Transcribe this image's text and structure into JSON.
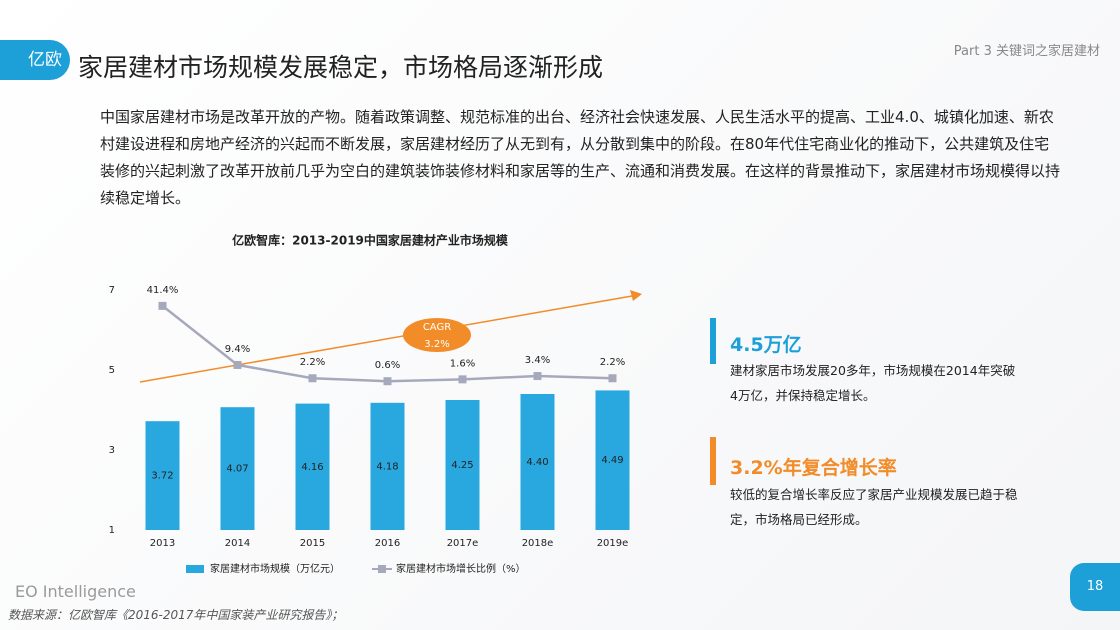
{
  "header": {
    "logo": "亿欧",
    "title": "家居建材市场规模发展稳定，市场格局逐渐形成",
    "part": "Part 3 关键词之家居建材"
  },
  "paragraph": "中国家居建材市场是改革开放的产物。随着政策调整、规范标准的出台、经济社会快速发展、人民生活水平的提高、工业4.0、城镇化加速、新农村建设进程和房地产经济的兴起而不断发展，家居建材经历了从无到有，从分散到集中的阶段。在80年代住宅商业化的推动下，公共建筑及住宅装修的兴起刺激了改革开放前几乎为空白的建筑装饰装修材料和家居等的生产、流通和消费发展。在这样的背景推动下，家居建材市场规模得以持续稳定增长。",
  "chart_data": {
    "type": "bar",
    "title": "亿欧智库：2013-2019中国家居建材产业市场规模",
    "categories": [
      "2013",
      "2014",
      "2015",
      "2016",
      "2017e",
      "2018e",
      "2019e"
    ],
    "series": [
      {
        "name": "家居建材市场规模（万亿元）",
        "type": "bar",
        "color": "#29a8e0",
        "values": [
          3.72,
          4.07,
          4.16,
          4.18,
          4.25,
          4.4,
          4.49
        ],
        "value_labels": [
          "3.72",
          "4.07",
          "4.16",
          "4.18",
          "4.25",
          "4.40",
          "4.49"
        ]
      },
      {
        "name": "家居建材市场增长比例（%）",
        "type": "line",
        "axis": "y2",
        "color": "#a6a9bc",
        "values": [
          41.4,
          9.4,
          2.2,
          0.6,
          1.6,
          3.4,
          2.2
        ],
        "value_labels": [
          "41.4%",
          "9.4%",
          "2.2%",
          "0.6%",
          "1.6%",
          "3.4%",
          "2.2%"
        ]
      }
    ],
    "ylim": [
      1,
      7
    ],
    "yticks": [
      1,
      3,
      5,
      7
    ],
    "y2lim": [
      -80,
      50
    ],
    "annotations": [
      "CAGR",
      "3.2%"
    ]
  },
  "stats": [
    {
      "title": "4.5万亿",
      "text": "建材家居市场发展20多年，市场规模在2014年突破4万亿，并保持稳定增长。",
      "color": "#1d9fd8"
    },
    {
      "title": "3.2%年复合增长率",
      "text": "较低的复合增长率反应了家居产业规模发展已趋于稳定，市场格局已经形成。",
      "color": "#f28c28"
    }
  ],
  "footer": {
    "brand": "EO Intelligence",
    "source": "数据来源：亿欧智库《2016-2017年中国家装产业研究报告》；",
    "page": "18"
  }
}
